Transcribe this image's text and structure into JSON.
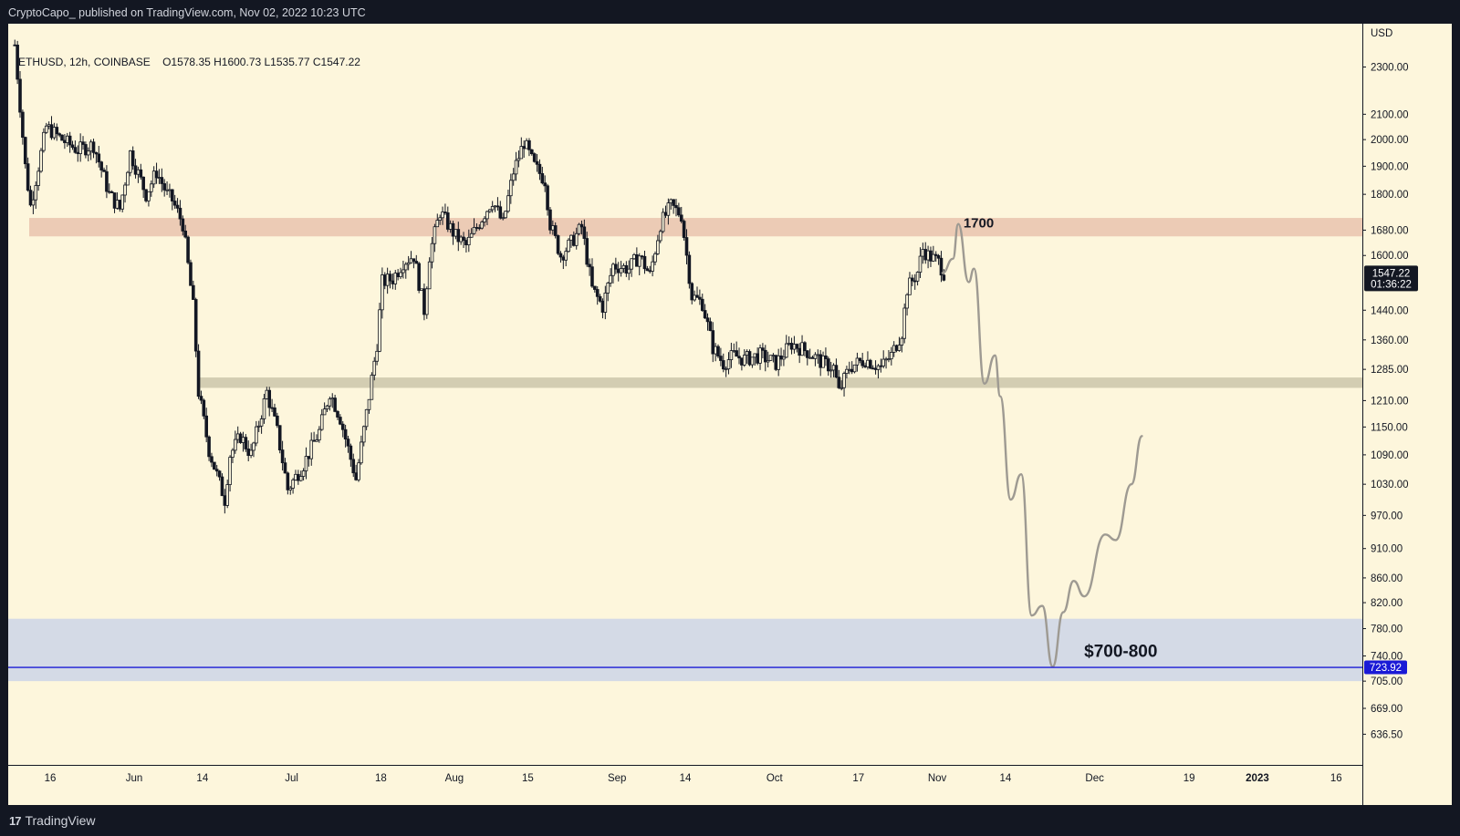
{
  "header": {
    "published_text": "CryptoCapo_ published on TradingView.com, Nov 02, 2022 10:23 UTC"
  },
  "legend": {
    "symbol_text": "ETHUSD, 12h, COINBASE",
    "ohlc_text": "O1578.35  H1600.73  L1535.77  C1547.22"
  },
  "footer": {
    "logo_text": "17",
    "brand_text": "TradingView"
  },
  "colors": {
    "background": "#fdf6dc",
    "axis_background": "#fdf6dc",
    "candle": "#131722",
    "resistance_zone": "#eccbb5",
    "support_zone": "#d3cdb2",
    "target_zone": "#d4dae6",
    "target_line": "#1a1ad6",
    "projection": "#9e9a92",
    "price_tag_bg": "#131722",
    "target_tag_bg": "#1a1ad6"
  },
  "chart_data": {
    "type": "candlestick",
    "symbol": "ETHUSD",
    "interval": "12h",
    "exchange": "COINBASE",
    "y_axis": {
      "unit": "USD",
      "scale": "log",
      "range": [
        600,
        2500
      ],
      "ticks": [
        "2300.00",
        "2100.00",
        "2000.00",
        "1900.00",
        "1800.00",
        "1680.00",
        "1600.00",
        "1440.00",
        "1360.00",
        "1285.00",
        "1210.00",
        "1150.00",
        "1090.00",
        "1030.00",
        "970.00",
        "910.00",
        "860.00",
        "820.00",
        "780.00",
        "740.00",
        "705.00",
        "669.00",
        "636.50"
      ],
      "tick_values": [
        2300,
        2100,
        2000,
        1900,
        1800,
        1680,
        1600,
        1440,
        1360,
        1285,
        1210,
        1150,
        1090,
        1030,
        970,
        910,
        860,
        820,
        780,
        740,
        705,
        669,
        636.5
      ]
    },
    "x_axis": {
      "range": [
        "2022-05-08",
        "2023-01-21"
      ],
      "ticks": [
        {
          "label": "16",
          "date": "2022-05-16"
        },
        {
          "label": "Jun",
          "date": "2022-06-01"
        },
        {
          "label": "14",
          "date": "2022-06-14"
        },
        {
          "label": "Jul",
          "date": "2022-07-01"
        },
        {
          "label": "18",
          "date": "2022-07-18"
        },
        {
          "label": "Aug",
          "date": "2022-08-01"
        },
        {
          "label": "15",
          "date": "2022-08-15"
        },
        {
          "label": "Sep",
          "date": "2022-09-01"
        },
        {
          "label": "14",
          "date": "2022-09-14"
        },
        {
          "label": "Oct",
          "date": "2022-10-01"
        },
        {
          "label": "17",
          "date": "2022-10-17"
        },
        {
          "label": "Nov",
          "date": "2022-11-01"
        },
        {
          "label": "14",
          "date": "2022-11-14"
        },
        {
          "label": "Dec",
          "date": "2022-12-01"
        },
        {
          "label": "19",
          "date": "2022-12-19"
        },
        {
          "label": "2023",
          "date": "2023-01-01",
          "bold": true
        },
        {
          "label": "16",
          "date": "2023-01-16"
        }
      ]
    },
    "price_path": [
      {
        "date": "2022-05-09",
        "price": 2400
      },
      {
        "date": "2022-05-11",
        "price": 1900
      },
      {
        "date": "2022-05-12",
        "price": 1760
      },
      {
        "date": "2022-05-15",
        "price": 2050
      },
      {
        "date": "2022-05-18",
        "price": 2000
      },
      {
        "date": "2022-05-21",
        "price": 1960
      },
      {
        "date": "2022-05-24",
        "price": 1980
      },
      {
        "date": "2022-05-27",
        "price": 1800
      },
      {
        "date": "2022-05-29",
        "price": 1750
      },
      {
        "date": "2022-05-31",
        "price": 1950
      },
      {
        "date": "2022-06-03",
        "price": 1800
      },
      {
        "date": "2022-06-05",
        "price": 1880
      },
      {
        "date": "2022-06-07",
        "price": 1800
      },
      {
        "date": "2022-06-08",
        "price": 1780
      },
      {
        "date": "2022-06-10",
        "price": 1700
      },
      {
        "date": "2022-06-12",
        "price": 1450
      },
      {
        "date": "2022-06-13",
        "price": 1230
      },
      {
        "date": "2022-06-15",
        "price": 1100
      },
      {
        "date": "2022-06-18",
        "price": 1000
      },
      {
        "date": "2022-06-19",
        "price": 1090
      },
      {
        "date": "2022-06-21",
        "price": 1130
      },
      {
        "date": "2022-06-23",
        "price": 1090
      },
      {
        "date": "2022-06-26",
        "price": 1230
      },
      {
        "date": "2022-06-28",
        "price": 1140
      },
      {
        "date": "2022-06-30",
        "price": 1020
      },
      {
        "date": "2022-07-03",
        "price": 1070
      },
      {
        "date": "2022-07-06",
        "price": 1140
      },
      {
        "date": "2022-07-08",
        "price": 1230
      },
      {
        "date": "2022-07-10",
        "price": 1170
      },
      {
        "date": "2022-07-13",
        "price": 1040
      },
      {
        "date": "2022-07-15",
        "price": 1180
      },
      {
        "date": "2022-07-17",
        "price": 1350
      },
      {
        "date": "2022-07-18",
        "price": 1520
      },
      {
        "date": "2022-07-20",
        "price": 1530
      },
      {
        "date": "2022-07-22",
        "price": 1580
      },
      {
        "date": "2022-07-24",
        "price": 1600
      },
      {
        "date": "2022-07-26",
        "price": 1440
      },
      {
        "date": "2022-07-27",
        "price": 1600
      },
      {
        "date": "2022-07-29",
        "price": 1740
      },
      {
        "date": "2022-08-01",
        "price": 1660
      },
      {
        "date": "2022-08-03",
        "price": 1630
      },
      {
        "date": "2022-08-06",
        "price": 1720
      },
      {
        "date": "2022-08-08",
        "price": 1780
      },
      {
        "date": "2022-08-10",
        "price": 1700
      },
      {
        "date": "2022-08-12",
        "price": 1880
      },
      {
        "date": "2022-08-14",
        "price": 1990
      },
      {
        "date": "2022-08-16",
        "price": 1900
      },
      {
        "date": "2022-08-18",
        "price": 1850
      },
      {
        "date": "2022-08-19",
        "price": 1700
      },
      {
        "date": "2022-08-21",
        "price": 1600
      },
      {
        "date": "2022-08-23",
        "price": 1640
      },
      {
        "date": "2022-08-25",
        "price": 1690
      },
      {
        "date": "2022-08-27",
        "price": 1500
      },
      {
        "date": "2022-08-29",
        "price": 1450
      },
      {
        "date": "2022-08-31",
        "price": 1570
      },
      {
        "date": "2022-09-03",
        "price": 1560
      },
      {
        "date": "2022-09-05",
        "price": 1600
      },
      {
        "date": "2022-09-07",
        "price": 1540
      },
      {
        "date": "2022-09-09",
        "price": 1700
      },
      {
        "date": "2022-09-11",
        "price": 1760
      },
      {
        "date": "2022-09-13",
        "price": 1730
      },
      {
        "date": "2022-09-14",
        "price": 1600
      },
      {
        "date": "2022-09-15",
        "price": 1480
      },
      {
        "date": "2022-09-17",
        "price": 1460
      },
      {
        "date": "2022-09-19",
        "price": 1340
      },
      {
        "date": "2022-09-21",
        "price": 1300
      },
      {
        "date": "2022-09-23",
        "price": 1320
      },
      {
        "date": "2022-09-25",
        "price": 1310
      },
      {
        "date": "2022-09-28",
        "price": 1320
      },
      {
        "date": "2022-10-01",
        "price": 1300
      },
      {
        "date": "2022-10-04",
        "price": 1350
      },
      {
        "date": "2022-10-07",
        "price": 1330
      },
      {
        "date": "2022-10-10",
        "price": 1300
      },
      {
        "date": "2022-10-12",
        "price": 1290
      },
      {
        "date": "2022-10-13",
        "price": 1230
      },
      {
        "date": "2022-10-15",
        "price": 1290
      },
      {
        "date": "2022-10-18",
        "price": 1310
      },
      {
        "date": "2022-10-21",
        "price": 1290
      },
      {
        "date": "2022-10-23",
        "price": 1320
      },
      {
        "date": "2022-10-25",
        "price": 1380
      },
      {
        "date": "2022-10-26",
        "price": 1500
      },
      {
        "date": "2022-10-28",
        "price": 1550
      },
      {
        "date": "2022-10-29",
        "price": 1620
      },
      {
        "date": "2022-10-30",
        "price": 1600
      },
      {
        "date": "2022-11-01",
        "price": 1580
      },
      {
        "date": "2022-11-02",
        "price": 1547.22
      }
    ],
    "last": {
      "date": "2022-11-02",
      "open": 1578.35,
      "high": 1600.73,
      "low": 1535.77,
      "close": 1547.22
    },
    "last_price_label": "1547.22",
    "countdown_label": "01:36:22",
    "zones": [
      {
        "name": "resistance",
        "low": 1660,
        "high": 1720,
        "from": "2022-05-12"
      },
      {
        "name": "support",
        "low": 1240,
        "high": 1265,
        "from": "2022-06-13"
      },
      {
        "name": "target",
        "low": 705,
        "high": 795,
        "from": "2022-05-08"
      }
    ],
    "horizontal_line": {
      "price": 723.92,
      "label": "723.92"
    },
    "projection": [
      {
        "date": "2022-11-02",
        "price": 1547
      },
      {
        "date": "2022-11-04",
        "price": 1590
      },
      {
        "date": "2022-11-05",
        "price": 1700
      },
      {
        "date": "2022-11-07",
        "price": 1520
      },
      {
        "date": "2022-11-08",
        "price": 1560
      },
      {
        "date": "2022-11-10",
        "price": 1250
      },
      {
        "date": "2022-11-12",
        "price": 1320
      },
      {
        "date": "2022-11-13",
        "price": 1220
      },
      {
        "date": "2022-11-15",
        "price": 1000
      },
      {
        "date": "2022-11-17",
        "price": 1050
      },
      {
        "date": "2022-11-19",
        "price": 800
      },
      {
        "date": "2022-11-21",
        "price": 815
      },
      {
        "date": "2022-11-23",
        "price": 725
      },
      {
        "date": "2022-11-25",
        "price": 805
      },
      {
        "date": "2022-11-27",
        "price": 855
      },
      {
        "date": "2022-11-29",
        "price": 830
      },
      {
        "date": "2022-12-03",
        "price": 935
      },
      {
        "date": "2022-12-05",
        "price": 925
      },
      {
        "date": "2022-12-08",
        "price": 1030
      },
      {
        "date": "2022-12-10",
        "price": 1130
      }
    ],
    "annotations": [
      {
        "text": "1700",
        "date": "2022-11-06",
        "price": 1700
      },
      {
        "text": "$700-800",
        "date": "2022-11-29",
        "price": 745
      }
    ],
    "axis_unit_label": "USD"
  }
}
